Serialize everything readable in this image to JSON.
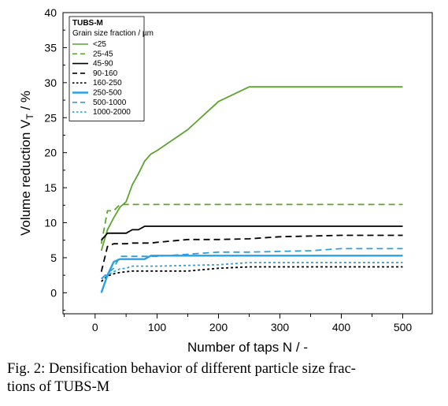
{
  "caption": {
    "line1": "Fig. 2: Densification behavior of different particle size frac-",
    "line2": "tions of TUBS-M"
  },
  "chart_data": {
    "type": "line",
    "xlabel": "Number of taps N / -",
    "ylabel_main": "Volume reduction V",
    "ylabel_sub": "T",
    "ylabel_unit": " / %",
    "xlim": [
      0,
      520
    ],
    "ylim": [
      -3,
      40
    ],
    "x_scale": "piecewise: 0-100 and 100-500 drawn at equal widths",
    "x_ticks": [
      0,
      100,
      200,
      300,
      400,
      500
    ],
    "x_tick_labels": [
      "0",
      "100",
      "200",
      "300",
      "400",
      "500"
    ],
    "x_minor_ticks": [
      50
    ],
    "y_ticks": [
      0,
      5,
      10,
      15,
      20,
      25,
      30,
      35,
      40
    ],
    "grid": false,
    "legend": {
      "position": "top-left",
      "title": "TUBS-M",
      "subtitle": "Grain size fraction / µm"
    },
    "series": [
      {
        "name": "<25",
        "color": "#5ea431",
        "dash": "solid",
        "x": [
          10,
          20,
          30,
          40,
          50,
          60,
          70,
          80,
          90,
          100,
          150,
          200,
          250,
          300,
          350,
          400,
          450,
          500
        ],
        "y": [
          6.0,
          9.0,
          10.7,
          12.2,
          13.0,
          15.4,
          17.0,
          18.8,
          19.8,
          20.3,
          23.3,
          27.3,
          29.4,
          29.4,
          29.4,
          29.4,
          29.4,
          29.4
        ]
      },
      {
        "name": "25-45",
        "color": "#5ea431",
        "dash": "dashed",
        "x": [
          10,
          20,
          30,
          40,
          50,
          100,
          200,
          300,
          400,
          500
        ],
        "y": [
          7.0,
          11.7,
          11.7,
          12.6,
          12.6,
          12.6,
          12.6,
          12.6,
          12.6,
          12.6
        ]
      },
      {
        "name": "45-90",
        "color": "#000000",
        "dash": "solid",
        "x": [
          10,
          20,
          30,
          40,
          50,
          60,
          70,
          80,
          90,
          100,
          200,
          300,
          400,
          500
        ],
        "y": [
          7.5,
          8.5,
          8.5,
          8.5,
          8.5,
          9.0,
          9.0,
          9.5,
          9.5,
          9.5,
          9.5,
          9.5,
          9.5,
          9.5
        ]
      },
      {
        "name": "90-160",
        "color": "#000000",
        "dash": "dashed",
        "x": [
          10,
          20,
          30,
          40,
          50,
          60,
          70,
          80,
          90,
          100,
          150,
          200,
          250,
          300,
          350,
          400,
          450,
          500
        ],
        "y": [
          3.0,
          6.6,
          7.0,
          7.0,
          7.0,
          7.1,
          7.1,
          7.1,
          7.1,
          7.2,
          7.6,
          7.6,
          7.7,
          8.0,
          8.1,
          8.2,
          8.2,
          8.2
        ]
      },
      {
        "name": "160-250",
        "color": "#000000",
        "dash": "dotted",
        "x": [
          10,
          20,
          30,
          40,
          50,
          60,
          100,
          150,
          200,
          250,
          300,
          400,
          500
        ],
        "y": [
          1.6,
          2.4,
          2.7,
          2.9,
          3.0,
          3.1,
          3.1,
          3.1,
          3.5,
          3.7,
          3.7,
          3.7,
          3.7
        ]
      },
      {
        "name": "250-500",
        "color": "#29a0e6",
        "dash": "solid",
        "x": [
          10,
          20,
          30,
          40,
          50,
          60,
          70,
          80,
          90,
          100,
          200,
          300,
          400,
          500
        ],
        "y": [
          0.0,
          2.5,
          4.4,
          4.8,
          4.8,
          4.8,
          4.8,
          4.8,
          5.3,
          5.3,
          5.3,
          5.3,
          5.3,
          5.3
        ]
      },
      {
        "name": "500-1000",
        "color": "#29a0e6",
        "dash": "dashed",
        "x": [
          10,
          20,
          30,
          40,
          50,
          60,
          100,
          150,
          200,
          250,
          300,
          350,
          400,
          450,
          500
        ],
        "y": [
          2.0,
          2.8,
          3.5,
          5.2,
          5.2,
          5.2,
          5.2,
          5.5,
          5.8,
          5.8,
          5.9,
          6.0,
          6.3,
          6.3,
          6.3
        ]
      },
      {
        "name": "1000-2000",
        "color": "#29a0e6",
        "dash": "dotted",
        "x": [
          10,
          20,
          30,
          40,
          50,
          60,
          100,
          200,
          250,
          300,
          400,
          500
        ],
        "y": [
          2.0,
          2.5,
          3.0,
          3.4,
          3.5,
          3.8,
          3.8,
          4.0,
          4.3,
          4.3,
          4.3,
          4.3
        ]
      }
    ]
  }
}
